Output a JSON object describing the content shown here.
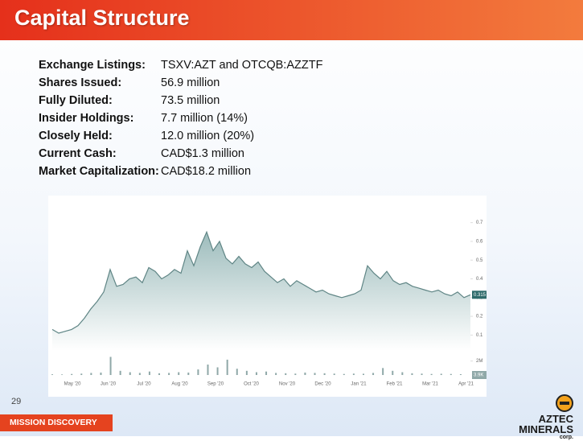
{
  "header": {
    "title": "Capital Structure"
  },
  "listings": [
    {
      "label": "Exchange Listings:",
      "value": "TSXV:AZT and OTCQB:AZZTF"
    },
    {
      "label": "Shares Issued:",
      "value": "56.9 million"
    },
    {
      "label": "Fully Diluted:",
      "value": "73.5 million"
    },
    {
      "label": "Insider Holdings:",
      "value": "7.7 million (14%)"
    },
    {
      "label": "Closely Held:",
      "value": "12.0 million (20%)"
    },
    {
      "label": "Current Cash:",
      "value": "CAD$1.3 million"
    },
    {
      "label": "Market Capitalization:",
      "value": "CAD$18.2 million"
    }
  ],
  "chart_data": {
    "type": "area",
    "xticks": [
      "May '20",
      "Jun '20",
      "Jul '20",
      "Aug '20",
      "Sep '20",
      "Oct '20",
      "Nov '20",
      "Dec '20",
      "Jan '21",
      "Feb '21",
      "Mar '21",
      "Apr '21"
    ],
    "ylim": [
      0.05,
      0.75
    ],
    "yticks": [
      0.1,
      0.2,
      0.3,
      0.4,
      0.5,
      0.6,
      0.7
    ],
    "color": "#5f8585",
    "price": {
      "values": [
        0.13,
        0.11,
        0.12,
        0.13,
        0.15,
        0.19,
        0.24,
        0.28,
        0.33,
        0.45,
        0.36,
        0.37,
        0.4,
        0.41,
        0.38,
        0.46,
        0.44,
        0.4,
        0.42,
        0.45,
        0.43,
        0.55,
        0.47,
        0.57,
        0.65,
        0.55,
        0.6,
        0.51,
        0.48,
        0.52,
        0.48,
        0.46,
        0.49,
        0.44,
        0.41,
        0.38,
        0.4,
        0.36,
        0.39,
        0.37,
        0.35,
        0.33,
        0.34,
        0.32,
        0.31,
        0.3,
        0.31,
        0.32,
        0.34,
        0.47,
        0.43,
        0.4,
        0.44,
        0.39,
        0.37,
        0.38,
        0.36,
        0.35,
        0.34,
        0.33,
        0.34,
        0.32,
        0.31,
        0.33,
        0.3,
        0.315
      ],
      "last_label": "0.315"
    },
    "volume": {
      "ylim": [
        0,
        3000000
      ],
      "yticks": [
        {
          "value": 2000000,
          "label": "2M"
        }
      ],
      "color": "#8fa8a8",
      "values": [
        100000,
        80000,
        150000,
        200000,
        300000,
        350000,
        2600000,
        600000,
        400000,
        300000,
        500000,
        250000,
        300000,
        400000,
        350000,
        800000,
        1500000,
        1100000,
        2200000,
        900000,
        600000,
        400000,
        500000,
        300000,
        250000,
        200000,
        350000,
        300000,
        250000,
        200000,
        150000,
        200000,
        180000,
        300000,
        1000000,
        600000,
        400000,
        250000,
        200000,
        150000,
        180000,
        150000,
        120000,
        3900
      ],
      "last_label": "3.9K"
    }
  },
  "footer": {
    "page_number": "29",
    "tagline": "MISSION DISCOVERY",
    "logo": [
      "AZTEC",
      "MINERALS",
      "corp."
    ]
  }
}
